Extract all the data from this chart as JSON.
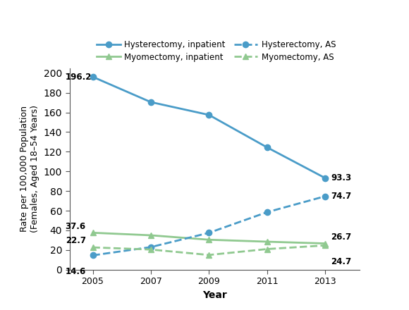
{
  "years": [
    2005,
    2007,
    2009,
    2011,
    2013
  ],
  "hysterectomy_inpatient": [
    196.2,
    170.5,
    157.5,
    124.5,
    93.3
  ],
  "hysterectomy_AS": [
    14.6,
    23.0,
    37.5,
    58.5,
    74.7
  ],
  "myomectomy_inpatient": [
    37.6,
    35.0,
    30.5,
    28.5,
    26.7
  ],
  "myomectomy_AS": [
    22.7,
    20.5,
    15.0,
    21.0,
    24.7
  ],
  "annotations_start": {
    "hysterectomy_inpatient": "196.2",
    "hysterectomy_AS": "14.6",
    "myomectomy_inpatient": "37.6",
    "myomectomy_AS": "22.7"
  },
  "annotations_end": {
    "hysterectomy_inpatient": "93.3",
    "hysterectomy_AS": "74.7",
    "myomectomy_inpatient": "26.7",
    "myomectomy_AS": "24.7"
  },
  "colors": {
    "hysterectomy": "#4A9CC8",
    "myomectomy": "#90C990"
  },
  "legend_labels": [
    "Hysterectomy, inpatient",
    "Myomectomy, inpatient",
    "Hysterectomy, AS",
    "Myomectomy, AS"
  ],
  "xlabel": "Year",
  "ylabel": "Rate per 100,000 Population\n(Females, Aged 18–54 Years)",
  "ylim": [
    0,
    205
  ],
  "yticks": [
    0,
    20,
    40,
    60,
    80,
    100,
    120,
    140,
    160,
    180,
    200
  ],
  "xlim": [
    2004.2,
    2014.2
  ],
  "background_color": "#ffffff"
}
